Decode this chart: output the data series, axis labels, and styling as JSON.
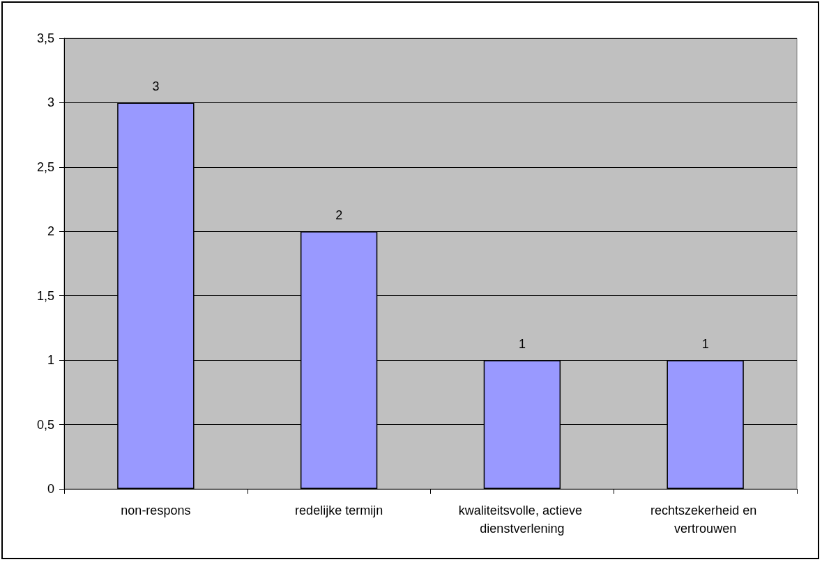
{
  "chart_data": {
    "type": "bar",
    "categories": [
      "non-respons",
      "redelijke termijn",
      "kwaliteitsvolle, actieve dienstverlening",
      "rechtszekerheid en vertrouwen"
    ],
    "values": [
      3,
      2,
      1,
      1
    ],
    "color": "#9999ff",
    "ylim": [
      0,
      3.5
    ],
    "yticks": [
      0,
      {
        "value": 0.5,
        "label": "0,5"
      },
      1,
      {
        "value": 1.5,
        "label": "1,5"
      },
      2,
      {
        "value": 2.5,
        "label": "2,5"
      },
      3,
      {
        "value": 3.5,
        "label": "3,5"
      }
    ],
    "grid": "y",
    "data_labels": true
  }
}
